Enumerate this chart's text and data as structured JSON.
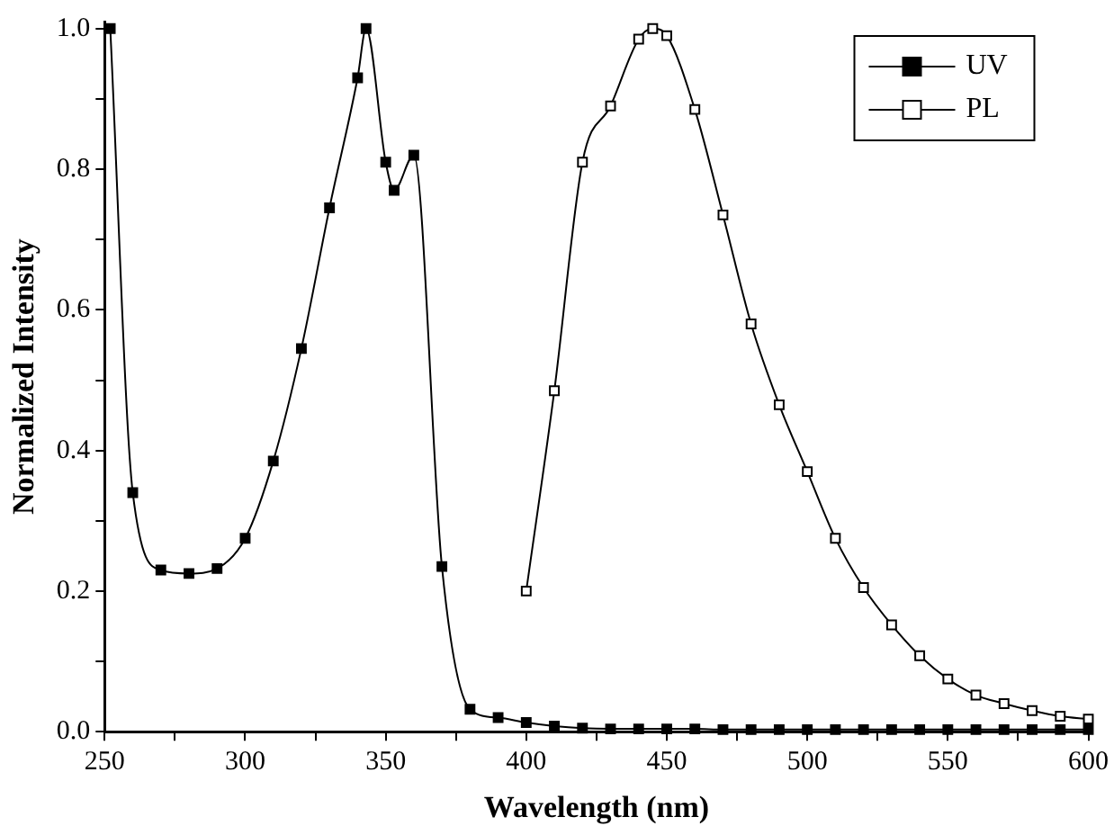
{
  "chart_data": {
    "type": "line",
    "xlabel": "Wavelength (nm)",
    "ylabel": "Normalized Intensity",
    "xlim": [
      250,
      600
    ],
    "ylim": [
      0,
      1.01
    ],
    "xticks": [
      250,
      {
        "value": 275,
        "label": null
      },
      300,
      {
        "value": 325,
        "label": null
      },
      350,
      {
        "value": 375,
        "label": null
      },
      400,
      {
        "value": 425,
        "label": null
      },
      450,
      {
        "value": 475,
        "label": null
      },
      500,
      {
        "value": 525,
        "label": null
      },
      550,
      {
        "value": 575,
        "label": null
      },
      600
    ],
    "yticks": [
      {
        "value": 0,
        "label": "0.0"
      },
      {
        "value": 0.1,
        "label": null
      },
      {
        "value": 0.2,
        "label": "0.2"
      },
      {
        "value": 0.3,
        "label": null
      },
      {
        "value": 0.4,
        "label": "0.4"
      },
      {
        "value": 0.5,
        "label": null
      },
      {
        "value": 0.6,
        "label": "0.6"
      },
      {
        "value": 0.7,
        "label": null
      },
      {
        "value": 0.8,
        "label": "0.8"
      },
      {
        "value": 0.9,
        "label": null
      },
      {
        "value": 1,
        "label": "1.0"
      }
    ],
    "grid": false,
    "legend": "top right",
    "marker": "square",
    "line_style": "solid",
    "series": [
      {
        "name": "UV",
        "color": "#000000",
        "x": [
          252,
          260,
          270,
          280,
          290,
          300,
          310,
          320,
          330,
          340,
          343,
          350,
          353,
          360,
          370,
          380,
          390,
          400,
          410,
          420,
          430,
          440,
          450,
          460,
          470,
          480,
          490,
          500,
          510,
          520,
          530,
          540,
          550,
          560,
          570,
          580,
          590,
          600
        ],
        "values": [
          1.0,
          0.34,
          0.23,
          0.225,
          0.232,
          0.275,
          0.385,
          0.545,
          0.745,
          0.93,
          1.0,
          0.81,
          0.77,
          0.82,
          0.235,
          0.032,
          0.02,
          0.013,
          0.008,
          0.005,
          0.004,
          0.004,
          0.004,
          0.004,
          0.003,
          0.003,
          0.003,
          0.003,
          0.003,
          0.003,
          0.003,
          0.003,
          0.003,
          0.003,
          0.003,
          0.003,
          0.003,
          0.003
        ]
      },
      {
        "name": "PL",
        "color": "#000000",
        "x": [
          400,
          410,
          420,
          430,
          440,
          445,
          450,
          460,
          470,
          480,
          490,
          500,
          510,
          520,
          530,
          540,
          550,
          560,
          570,
          580,
          590,
          600
        ],
        "values": [
          0.2,
          0.485,
          0.81,
          0.89,
          0.985,
          1.0,
          0.99,
          0.885,
          0.735,
          0.58,
          0.465,
          0.37,
          0.275,
          0.205,
          0.152,
          0.108,
          0.075,
          0.052,
          0.04,
          0.03,
          0.022,
          0.018
        ]
      }
    ]
  }
}
